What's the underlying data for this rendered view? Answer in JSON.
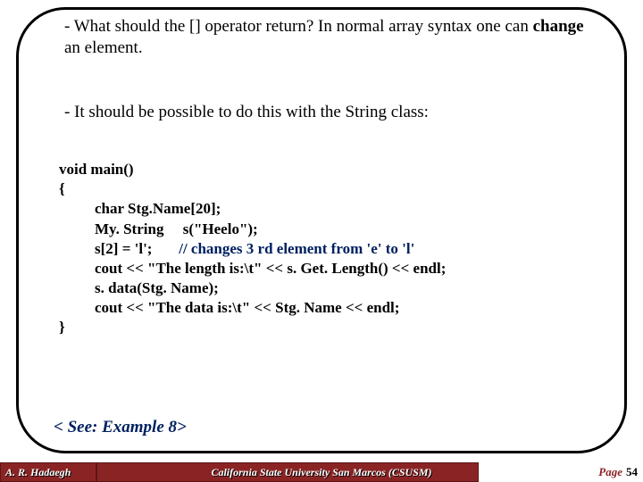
{
  "para1_pre": "- What should the [] operator return? In normal array syntax one can ",
  "para1_bold": "change",
  "para1_post": " an element.",
  "para2": "- It should be possible to do this with the String class:",
  "code": {
    "l1": "void main()",
    "l2": "{",
    "l3": "char Stg.Name[20];",
    "l4a": "My. String",
    "l4b": "s(\"Heelo\");",
    "l5a": "s[2] = 'l';",
    "l5b": "// changes 3 rd element from 'e' to 'l'",
    "l6": "cout << \"The length is:\\t\" << s. Get. Length() << endl;",
    "l7": "s. data(Stg. Name);",
    "l8": "cout << \"The data is:\\t\" << Stg. Name << endl;",
    "l9": "}"
  },
  "see": "< See: Example 8>",
  "footer": {
    "author": "A. R. Hadaegh",
    "uni": "California State University San Marcos (CSUSM)",
    "page_label": "Page",
    "page_num": "54"
  },
  "colors": {
    "navy": "#002060",
    "footer_bg": "#8a2424"
  }
}
